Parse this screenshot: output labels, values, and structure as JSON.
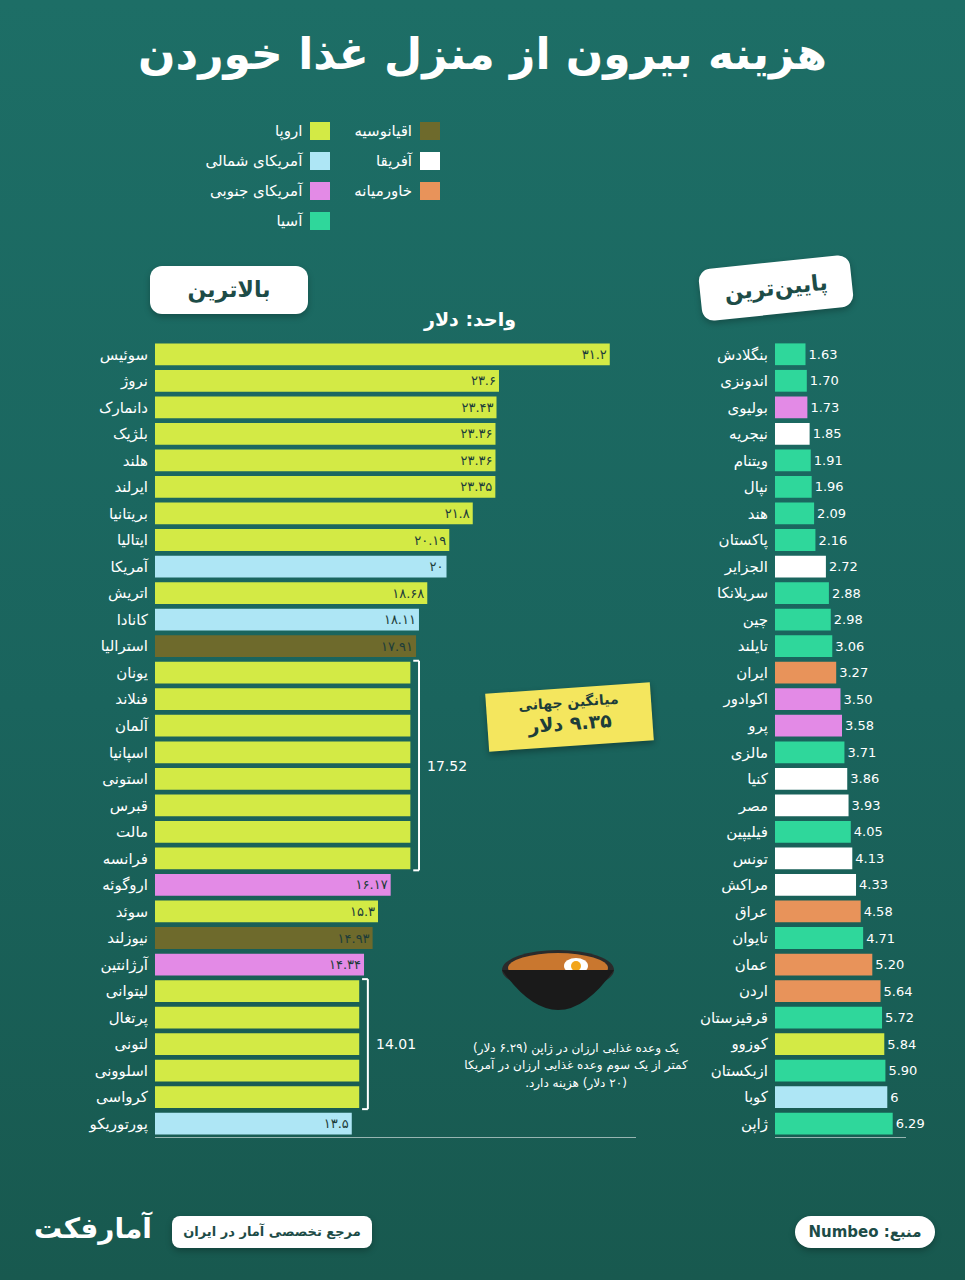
{
  "title": "هزینه بیرون از منزل غذا خوردن",
  "unit": "واحد: دلار",
  "regions": [
    {
      "name": "اروپا",
      "color": "#d3ea45"
    },
    {
      "name": "آمریکای شمالی",
      "color": "#aee6f5"
    },
    {
      "name": "آمریکای جنوبی",
      "color": "#e38ae6"
    },
    {
      "name": "آسیا",
      "color": "#2fd79b"
    },
    {
      "name": "اقیانوسیه",
      "color": "#6e6a2c"
    },
    {
      "name": "آفریقا",
      "color": "#ffffff"
    },
    {
      "name": "خاورمیانه",
      "color": "#e8935a"
    }
  ],
  "world_average": {
    "label": "میانگین جهانی",
    "text": "۹.۳۵ دلار"
  },
  "note": "یک وعده غذایی ارزان در ژاپن (۶.۲۹ دلار) کمتر از یک سوم وعده غذایی ارزان در آمریکا (۲۰ دلار) هزینه دارد.",
  "source": "منبع: Numbeo",
  "brand": "مرجع تخصصی آمار در ایران",
  "logo": "آمارفکت",
  "chart_data": [
    {
      "type": "bar",
      "title": "بالاترین",
      "orientation": "horizontal",
      "data_labels": true,
      "tick_labels": "y",
      "grid": false,
      "categories": [
        "سوئیس",
        "نروژ",
        "دانمارک",
        "بلژیک",
        "هلند",
        "ایرلند",
        "بریتانیا",
        "ایتالیا",
        "آمریکا",
        "اتریش",
        "کانادا",
        "استرالیا",
        "یونان",
        "فنلاند",
        "آلمان",
        "اسپانیا",
        "استونی",
        "قبرس",
        "مالت",
        "فرانسه",
        "اروگوئه",
        "سوئد",
        "نیوزلند",
        "آرژانتین",
        "لیتوانی",
        "پرتغال",
        "لتونی",
        "اسلوونی",
        "کرواسی",
        "پورتوریکو"
      ],
      "values": [
        31.2,
        23.6,
        23.43,
        23.36,
        23.36,
        23.35,
        21.8,
        20.19,
        20,
        18.68,
        18.11,
        17.91,
        17.52,
        17.52,
        17.52,
        17.52,
        17.52,
        17.52,
        17.52,
        17.52,
        16.17,
        15.3,
        14.93,
        14.34,
        14.01,
        14.01,
        14.01,
        14.01,
        14.01,
        13.5
      ],
      "value_labels": [
        "۳۱.۲",
        "۲۳.۶",
        "۲۳.۴۳",
        "۲۳.۳۶",
        "۲۳.۳۶",
        "۲۳.۳۵",
        "۲۱.۸",
        "۲۰.۱۹",
        "۲۰",
        "۱۸.۶۸",
        "۱۸.۱۱",
        "۱۷.۹۱",
        null,
        null,
        null,
        null,
        null,
        null,
        null,
        null,
        "۱۶.۱۷",
        "۱۵.۳",
        "۱۴.۹۳",
        "۱۴.۳۴",
        null,
        null,
        null,
        null,
        null,
        "۱۳.۵"
      ],
      "groups": [
        {
          "label": "17.52",
          "from": "یونان",
          "to": "فرانسه"
        },
        {
          "label": "14.01",
          "from": "لیتوانی",
          "to": "کرواسی"
        }
      ],
      "colors": [
        "#d3ea45",
        "#d3ea45",
        "#d3ea45",
        "#d3ea45",
        "#d3ea45",
        "#d3ea45",
        "#d3ea45",
        "#d3ea45",
        "#aee6f5",
        "#d3ea45",
        "#aee6f5",
        "#6e6a2c",
        "#d3ea45",
        "#d3ea45",
        "#d3ea45",
        "#d3ea45",
        "#d3ea45",
        "#d3ea45",
        "#d3ea45",
        "#d3ea45",
        "#e38ae6",
        "#d3ea45",
        "#6e6a2c",
        "#e38ae6",
        "#d3ea45",
        "#d3ea45",
        "#d3ea45",
        "#d3ea45",
        "#d3ea45",
        "#aee6f5"
      ],
      "xlim": [
        0,
        33
      ],
      "xticks": []
    },
    {
      "type": "bar",
      "title": "پایین‌ترین",
      "orientation": "horizontal",
      "data_labels": true,
      "tick_labels": "y",
      "grid": false,
      "categories": [
        "بنگلادش",
        "اندونزی",
        "بولیوی",
        "نیجریه",
        "ویتنام",
        "نپال",
        "هند",
        "پاکستان",
        "الجزایر",
        "سریلانکا",
        "چین",
        "تایلند",
        "ایران",
        "اکوادور",
        "پرو",
        "مالزی",
        "کنیا",
        "مصر",
        "فیلیپین",
        "تونس",
        "مراکش",
        "عراق",
        "تایوان",
        "عمان",
        "اردن",
        "قرقیزستان",
        "کوزوو",
        "ازبکستان",
        "کوبا",
        "ژاپن"
      ],
      "values": [
        1.63,
        1.7,
        1.73,
        1.85,
        1.91,
        1.96,
        2.09,
        2.16,
        2.72,
        2.88,
        2.98,
        3.06,
        3.27,
        3.5,
        3.58,
        3.71,
        3.86,
        3.93,
        4.05,
        4.13,
        4.33,
        4.58,
        4.71,
        5.2,
        5.64,
        5.72,
        5.84,
        5.9,
        6,
        6.29
      ],
      "value_labels": [
        "1.63",
        "1.70",
        "1.73",
        "1.85",
        "1.91",
        "1.96",
        "2.09",
        "2.16",
        "2.72",
        "2.88",
        "2.98",
        "3.06",
        "3.27",
        "3.50",
        "3.58",
        "3.71",
        "3.86",
        "3.93",
        "4.05",
        "4.13",
        "4.33",
        "4.58",
        "4.71",
        "5.20",
        "5.64",
        "5.72",
        "5.84",
        "5.90",
        "6",
        "6.29"
      ],
      "colors": [
        "#2fd79b",
        "#2fd79b",
        "#e38ae6",
        "#ffffff",
        "#2fd79b",
        "#2fd79b",
        "#2fd79b",
        "#2fd79b",
        "#ffffff",
        "#2fd79b",
        "#2fd79b",
        "#2fd79b",
        "#e8935a",
        "#e38ae6",
        "#e38ae6",
        "#2fd79b",
        "#ffffff",
        "#ffffff",
        "#2fd79b",
        "#ffffff",
        "#ffffff",
        "#e8935a",
        "#2fd79b",
        "#e8935a",
        "#e8935a",
        "#2fd79b",
        "#d3ea45",
        "#2fd79b",
        "#aee6f5",
        "#2fd79b"
      ],
      "xlim": [
        0,
        7
      ],
      "xticks": []
    }
  ]
}
